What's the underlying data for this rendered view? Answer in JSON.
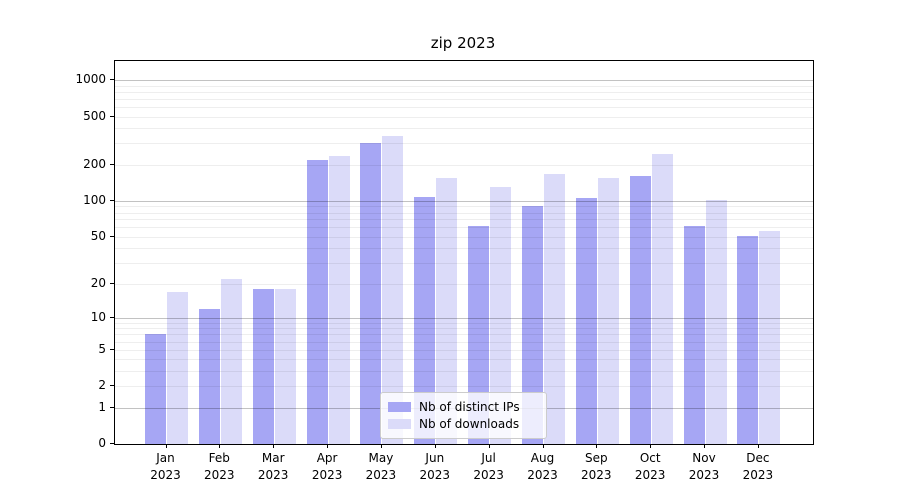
{
  "title": "zip 2023",
  "chart_data": {
    "type": "bar",
    "title": "zip 2023",
    "categories": [
      "Jan",
      "Feb",
      "Mar",
      "Apr",
      "May",
      "Jun",
      "Jul",
      "Aug",
      "Sep",
      "Oct",
      "Nov",
      "Dec"
    ],
    "x_year_line": "2023",
    "series": [
      {
        "name": "Nb of distinct IPs",
        "color": "#a6a6f4",
        "values": [
          7,
          12,
          18,
          220,
          300,
          108,
          62,
          90,
          105,
          160,
          62,
          51
        ]
      },
      {
        "name": "Nb of downloads",
        "color": "#dbdbf9",
        "values": [
          17,
          22,
          18,
          238,
          345,
          155,
          130,
          168,
          155,
          245,
          101,
          56
        ]
      }
    ],
    "y_scale": "log10(value+1)",
    "y_ticks": [
      0,
      1,
      2,
      5,
      10,
      20,
      50,
      100,
      200,
      500,
      1000
    ],
    "ylim": [
      0,
      1435
    ],
    "grid": "horizontal, minor + major decades",
    "legend_position": "lower center",
    "xlabel": "",
    "ylabel": ""
  },
  "colors": {
    "spine": "#000000",
    "grid_major": "#c2c2c2",
    "grid_minor": "#ededed",
    "background": "#ffffff"
  }
}
